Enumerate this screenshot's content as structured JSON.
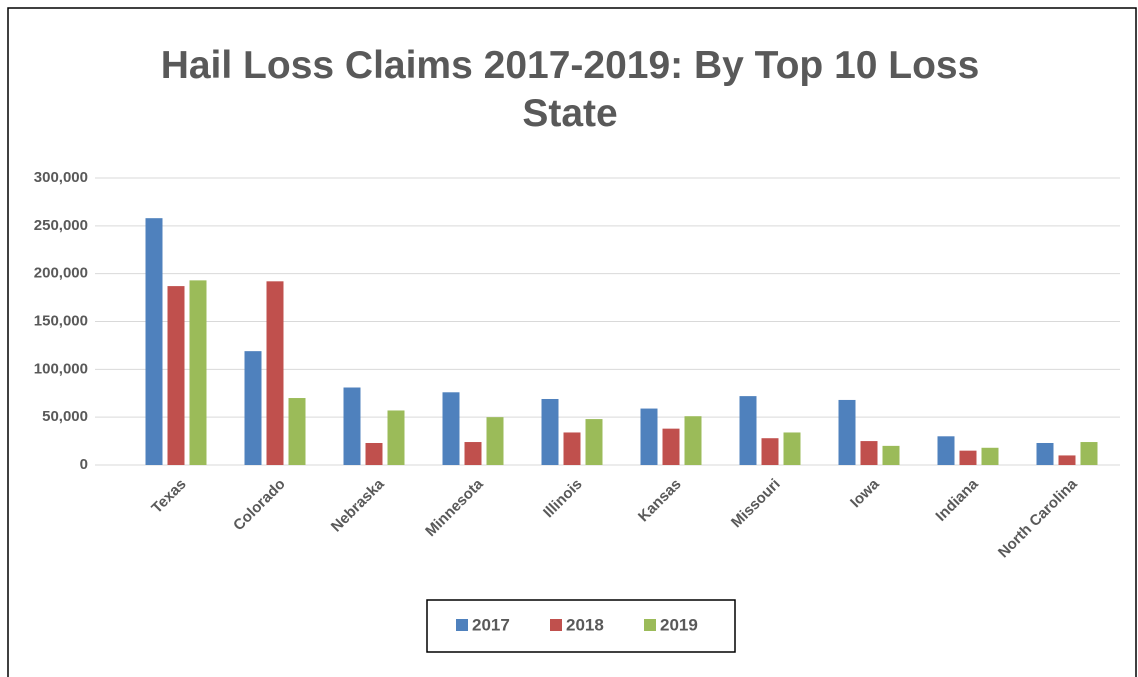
{
  "chart_data": {
    "type": "bar",
    "title": "Hail Loss Claims 2017-2019: By Top 10 Loss State",
    "categories": [
      "Texas",
      "Colorado",
      "Nebraska",
      "Minnesota",
      "Illinois",
      "Kansas",
      "Missouri",
      "Iowa",
      "Indiana",
      "North Carolina"
    ],
    "series": [
      {
        "name": "2017",
        "color": "#4f81bd",
        "values": [
          258000,
          119000,
          81000,
          76000,
          69000,
          59000,
          72000,
          68000,
          30000,
          23000
        ]
      },
      {
        "name": "2018",
        "color": "#c0504d",
        "values": [
          187000,
          192000,
          23000,
          24000,
          34000,
          38000,
          28000,
          25000,
          15000,
          10000
        ]
      },
      {
        "name": "2019",
        "color": "#9bbb59",
        "values": [
          193000,
          70000,
          57000,
          50000,
          48000,
          51000,
          34000,
          20000,
          18000,
          24000
        ]
      }
    ],
    "ylim": [
      0,
      300000
    ],
    "yticks": [
      0,
      {
        "value": 50000,
        "label": "50,000"
      },
      {
        "value": 100000,
        "label": "100,000"
      },
      {
        "value": 150000,
        "label": "150,000"
      },
      {
        "value": 200000,
        "label": "200,000"
      },
      {
        "value": 250000,
        "label": "250,000"
      },
      {
        "value": 300000,
        "label": "300,000"
      }
    ],
    "grid": true,
    "legend": "bottom"
  }
}
